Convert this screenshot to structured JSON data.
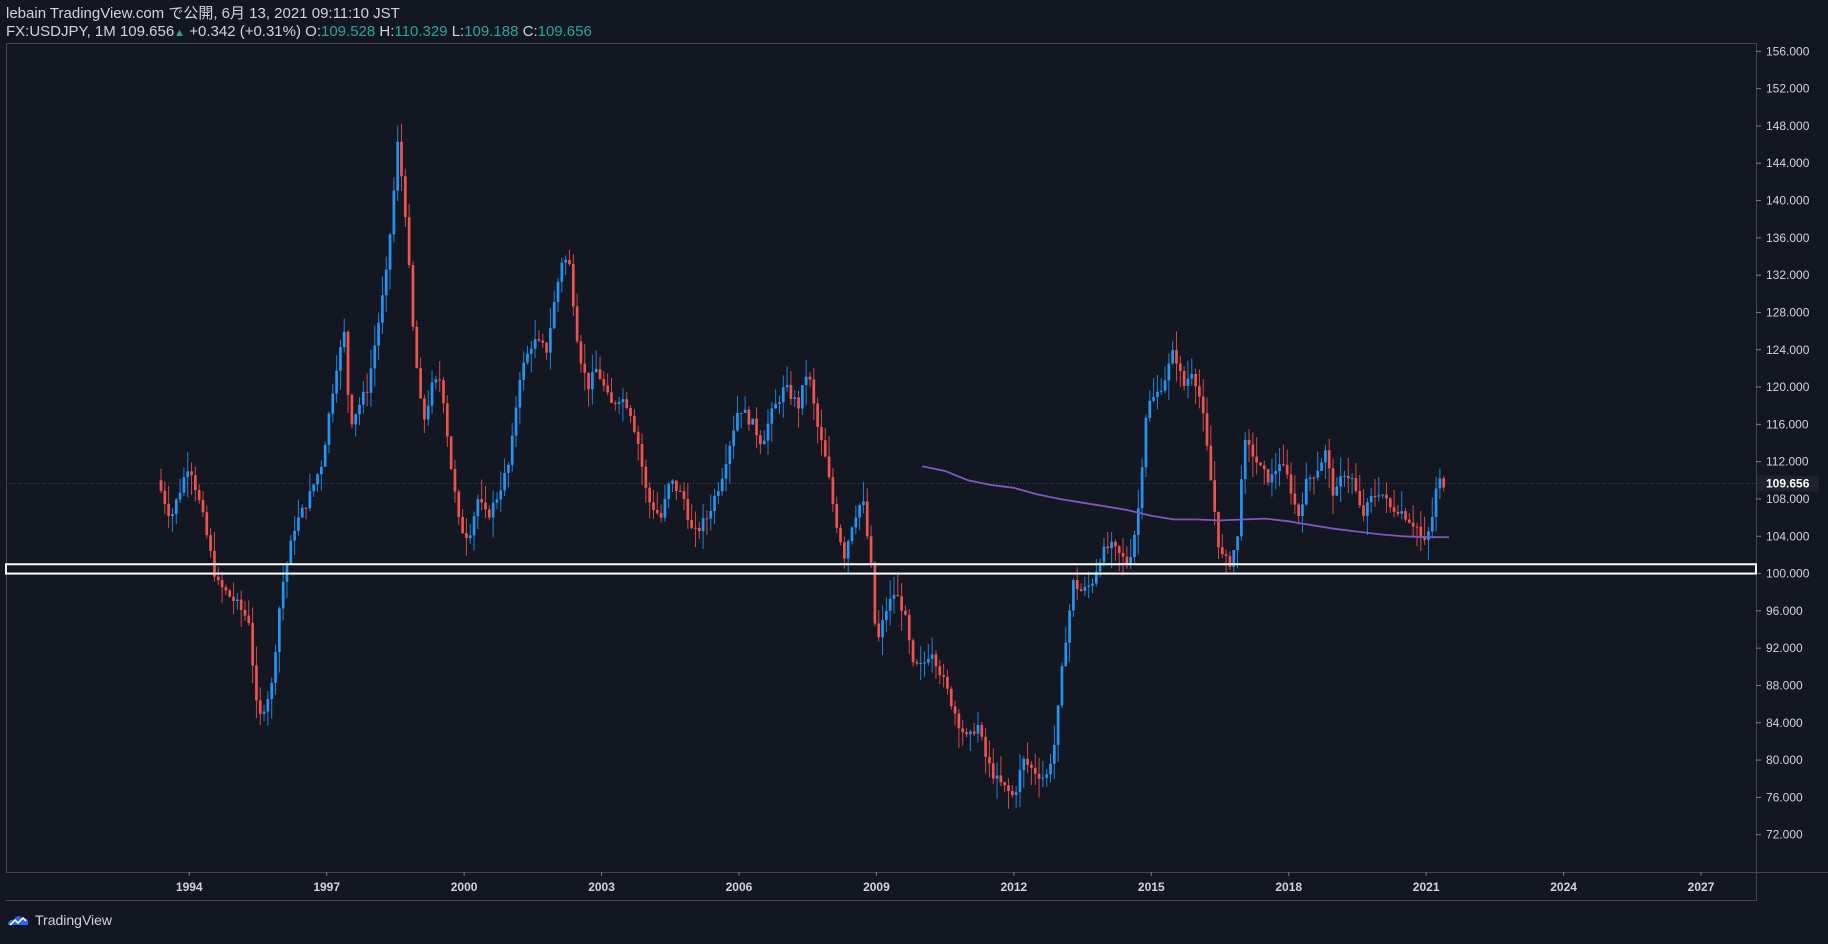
{
  "header": {
    "line1": "lebain TradingView.com で公開, 6月 13, 2021 09:11:10 JST",
    "symbol": "FX:USDJPY, 1M",
    "last": "109.656",
    "change": "+0.342 (+0.31%)",
    "o_label": "O:",
    "o_val": "109.528",
    "h_label": "H:",
    "h_val": "110.329",
    "l_label": "L:",
    "l_val": "109.188",
    "c_label": "C:",
    "c_val": "109.656"
  },
  "footer": {
    "brand": "TradingView"
  },
  "colors": {
    "background": "#131722",
    "up": "#2196f3",
    "down": "#ef5350",
    "ma": "#7e57c2",
    "support": "#ffffff",
    "axis_text": "#d1d4dc"
  },
  "chart_data": {
    "type": "candlestick",
    "title": "",
    "xlabel": "",
    "ylabel": "",
    "ylim": [
      68,
      157
    ],
    "xlim": [
      1990.0,
      2028.2
    ],
    "y_ticks": [
      72,
      76,
      80,
      84,
      88,
      92,
      96,
      100,
      104,
      108,
      112,
      116,
      120,
      124,
      128,
      132,
      136,
      140,
      144,
      148,
      152,
      156
    ],
    "y_tick_labels": [
      "72.000",
      "76.000",
      "80.000",
      "84.000",
      "88.000",
      "92.000",
      "96.000",
      "100.000",
      "104.000",
      "108.000",
      "112.000",
      "116.000",
      "120.000",
      "124.000",
      "128.000",
      "132.000",
      "136.000",
      "140.000",
      "144.000",
      "148.000",
      "152.000",
      "156.000"
    ],
    "x_ticks": [
      1994,
      1997,
      2000,
      2003,
      2006,
      2009,
      2012,
      2015,
      2018,
      2021,
      2024,
      2027
    ],
    "x_tick_labels": [
      "1994",
      "1997",
      "2000",
      "2003",
      "2006",
      "2009",
      "2012",
      "2015",
      "2018",
      "2021",
      "2024",
      "2027"
    ],
    "last_price": 109.656,
    "last_price_label": "109.656",
    "support_zone": [
      100.0,
      101.0
    ],
    "price_path": [
      [
        1993.3,
        110
      ],
      [
        1993.6,
        106
      ],
      [
        1994.0,
        112
      ],
      [
        1994.3,
        106
      ],
      [
        1994.6,
        99
      ],
      [
        1995.0,
        97
      ],
      [
        1995.3,
        95
      ],
      [
        1995.5,
        84
      ],
      [
        1995.8,
        88
      ],
      [
        1996.0,
        98
      ],
      [
        1996.3,
        105
      ],
      [
        1996.6,
        108
      ],
      [
        1996.9,
        112
      ],
      [
        1997.2,
        122
      ],
      [
        1997.4,
        126
      ],
      [
        1997.5,
        116
      ],
      [
        1997.7,
        118
      ],
      [
        1997.9,
        120
      ],
      [
        1998.1,
        126
      ],
      [
        1998.3,
        132
      ],
      [
        1998.45,
        140
      ],
      [
        1998.55,
        146
      ],
      [
        1998.7,
        140
      ],
      [
        1998.9,
        125
      ],
      [
        1999.1,
        116
      ],
      [
        1999.3,
        120
      ],
      [
        1999.5,
        121
      ],
      [
        1999.7,
        112
      ],
      [
        1999.9,
        105
      ],
      [
        2000.1,
        104
      ],
      [
        2000.3,
        108
      ],
      [
        2000.5,
        106
      ],
      [
        2000.7,
        108
      ],
      [
        2001.0,
        112
      ],
      [
        2001.2,
        121
      ],
      [
        2001.5,
        125
      ],
      [
        2001.8,
        124
      ],
      [
        2002.0,
        130
      ],
      [
        2002.15,
        134
      ],
      [
        2002.3,
        133
      ],
      [
        2002.5,
        124
      ],
      [
        2002.7,
        120
      ],
      [
        2002.9,
        122
      ],
      [
        2003.2,
        118
      ],
      [
        2003.4,
        119
      ],
      [
        2003.6,
        118
      ],
      [
        2003.8,
        114
      ],
      [
        2004.0,
        108
      ],
      [
        2004.3,
        106
      ],
      [
        2004.5,
        110
      ],
      [
        2004.8,
        108
      ],
      [
        2005.0,
        104
      ],
      [
        2005.3,
        106
      ],
      [
        2005.6,
        110
      ],
      [
        2005.8,
        114
      ],
      [
        2006.0,
        118
      ],
      [
        2006.3,
        116
      ],
      [
        2006.5,
        114
      ],
      [
        2006.7,
        117
      ],
      [
        2007.0,
        120
      ],
      [
        2007.3,
        118
      ],
      [
        2007.5,
        122
      ],
      [
        2007.7,
        116
      ],
      [
        2007.9,
        112
      ],
      [
        2008.1,
        106
      ],
      [
        2008.3,
        102
      ],
      [
        2008.5,
        106
      ],
      [
        2008.7,
        108
      ],
      [
        2008.9,
        100
      ],
      [
        2009.0,
        92
      ],
      [
        2009.2,
        96
      ],
      [
        2009.4,
        98
      ],
      [
        2009.6,
        96
      ],
      [
        2009.8,
        90
      ],
      [
        2010.0,
        90
      ],
      [
        2010.2,
        92
      ],
      [
        2010.5,
        88
      ],
      [
        2010.8,
        84
      ],
      [
        2011.0,
        82
      ],
      [
        2011.2,
        84
      ],
      [
        2011.4,
        80
      ],
      [
        2011.6,
        78
      ],
      [
        2011.8,
        77
      ],
      [
        2012.0,
        76
      ],
      [
        2012.2,
        80
      ],
      [
        2012.4,
        79
      ],
      [
        2012.7,
        78
      ],
      [
        2012.9,
        82
      ],
      [
        2013.1,
        92
      ],
      [
        2013.3,
        99
      ],
      [
        2013.5,
        98
      ],
      [
        2013.7,
        99
      ],
      [
        2013.9,
        102
      ],
      [
        2014.1,
        103
      ],
      [
        2014.3,
        102
      ],
      [
        2014.5,
        101
      ],
      [
        2014.7,
        106
      ],
      [
        2014.9,
        118
      ],
      [
        2015.1,
        119
      ],
      [
        2015.3,
        121
      ],
      [
        2015.5,
        124
      ],
      [
        2015.7,
        120
      ],
      [
        2015.9,
        122
      ],
      [
        2016.1,
        118
      ],
      [
        2016.3,
        110
      ],
      [
        2016.5,
        102
      ],
      [
        2016.7,
        101
      ],
      [
        2016.9,
        104
      ],
      [
        2017.0,
        114
      ],
      [
        2017.2,
        113
      ],
      [
        2017.4,
        111
      ],
      [
        2017.6,
        110
      ],
      [
        2017.8,
        112
      ],
      [
        2018.0,
        110
      ],
      [
        2018.2,
        106
      ],
      [
        2018.4,
        110
      ],
      [
        2018.6,
        111
      ],
      [
        2018.8,
        113
      ],
      [
        2019.0,
        108
      ],
      [
        2019.2,
        111
      ],
      [
        2019.4,
        110
      ],
      [
        2019.6,
        106
      ],
      [
        2019.8,
        108
      ],
      [
        2020.0,
        109
      ],
      [
        2020.2,
        107
      ],
      [
        2020.4,
        107
      ],
      [
        2020.6,
        106
      ],
      [
        2020.8,
        105
      ],
      [
        2020.95,
        103
      ],
      [
        2021.1,
        105
      ],
      [
        2021.25,
        110
      ],
      [
        2021.4,
        109.7
      ]
    ],
    "ma_path": [
      [
        2010.0,
        111.5
      ],
      [
        2010.5,
        111.0
      ],
      [
        2011.0,
        110.0
      ],
      [
        2011.5,
        109.5
      ],
      [
        2012.0,
        109.2
      ],
      [
        2012.5,
        108.5
      ],
      [
        2013.0,
        108.0
      ],
      [
        2013.5,
        107.6
      ],
      [
        2014.0,
        107.2
      ],
      [
        2014.5,
        106.8
      ],
      [
        2015.0,
        106.2
      ],
      [
        2015.5,
        105.8
      ],
      [
        2016.0,
        105.8
      ],
      [
        2016.5,
        105.7
      ],
      [
        2017.0,
        105.8
      ],
      [
        2017.5,
        105.9
      ],
      [
        2018.0,
        105.6
      ],
      [
        2018.5,
        105.2
      ],
      [
        2019.0,
        104.8
      ],
      [
        2019.5,
        104.5
      ],
      [
        2020.0,
        104.2
      ],
      [
        2020.5,
        104.0
      ],
      [
        2021.0,
        103.9
      ],
      [
        2021.5,
        103.9
      ]
    ]
  }
}
